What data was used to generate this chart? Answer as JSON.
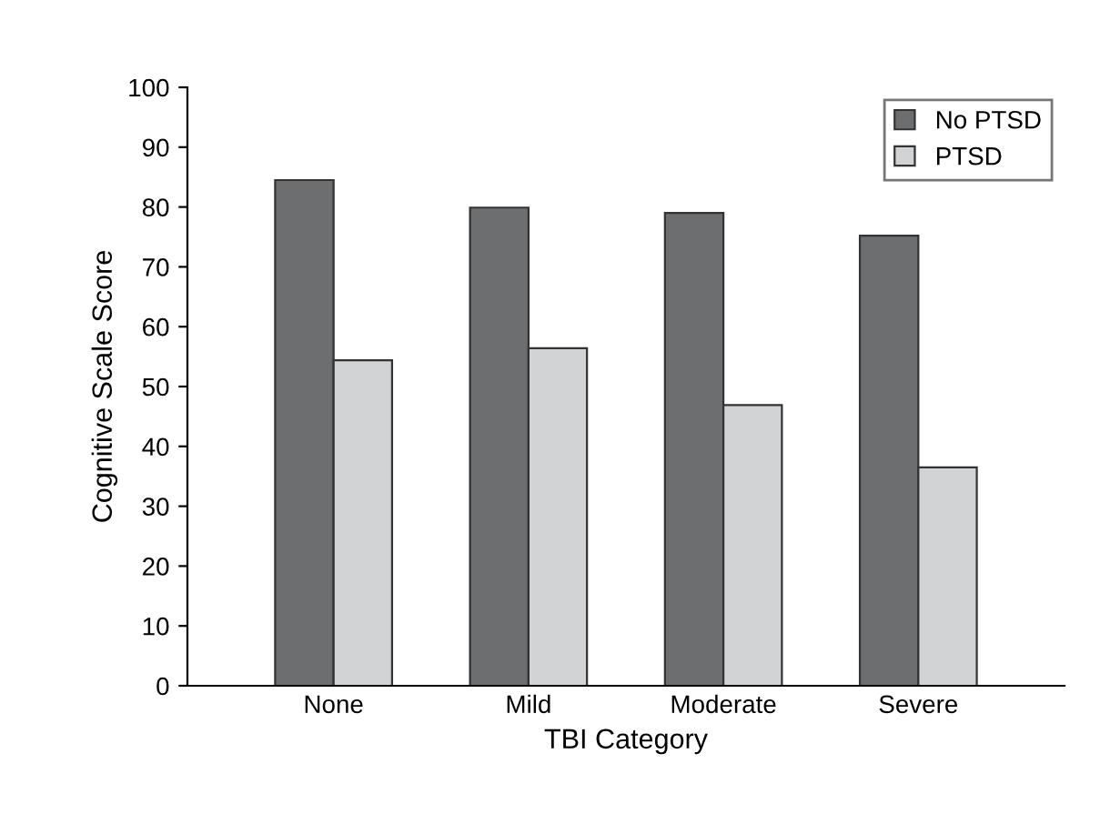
{
  "chart_data": {
    "type": "bar",
    "xlabel": "TBI Category",
    "ylabel": "Cognitive Scale Score",
    "categories": [
      "None",
      "Mild",
      "Moderate",
      "Severe"
    ],
    "series": [
      {
        "name": "No PTSD",
        "color": "#6d6e70",
        "values": [
          84.5,
          79.9,
          79.0,
          75.2
        ]
      },
      {
        "name": "PTSD",
        "color": "#d2d3d5",
        "values": [
          54.4,
          56.4,
          46.9,
          36.5
        ]
      }
    ],
    "ylim": [
      0,
      100
    ],
    "yticks": [
      0,
      10,
      20,
      30,
      40,
      50,
      60,
      70,
      80,
      90,
      100
    ],
    "grid": false,
    "legend": "top right"
  }
}
